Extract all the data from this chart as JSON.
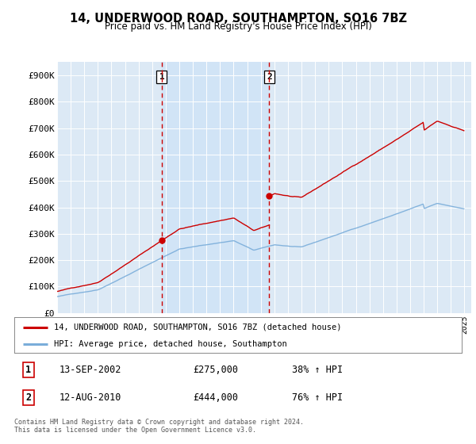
{
  "title": "14, UNDERWOOD ROAD, SOUTHAMPTON, SO16 7BZ",
  "subtitle": "Price paid vs. HM Land Registry's House Price Index (HPI)",
  "ylabel_ticks": [
    "£0",
    "£100K",
    "£200K",
    "£300K",
    "£400K",
    "£500K",
    "£600K",
    "£700K",
    "£800K",
    "£900K"
  ],
  "ytick_values": [
    0,
    100000,
    200000,
    300000,
    400000,
    500000,
    600000,
    700000,
    800000,
    900000
  ],
  "ylim": [
    0,
    950000
  ],
  "background_color": "#ffffff",
  "plot_bg_color": "#dce9f5",
  "highlight_bg_color": "#d0e4f7",
  "grid_color": "#cccccc",
  "sale1_date_num": 2002.708,
  "sale1_price": 275000,
  "sale2_date_num": 2010.622,
  "sale2_price": 444000,
  "line1_color": "#cc0000",
  "line2_color": "#7aadda",
  "vline_color": "#cc0000",
  "legend1_label": "14, UNDERWOOD ROAD, SOUTHAMPTON, SO16 7BZ (detached house)",
  "legend2_label": "HPI: Average price, detached house, Southampton",
  "sale1_date_str": "13-SEP-2002",
  "sale1_price_str": "£275,000",
  "sale1_hpi_str": "38% ↑ HPI",
  "sale2_date_str": "12-AUG-2010",
  "sale2_price_str": "£444,000",
  "sale2_hpi_str": "76% ↑ HPI",
  "footer": "Contains HM Land Registry data © Crown copyright and database right 2024.\nThis data is licensed under the Open Government Licence v3.0.",
  "xmin": 1995.0,
  "xmax": 2025.5,
  "fig_width": 6.0,
  "fig_height": 5.6,
  "dpi": 100
}
